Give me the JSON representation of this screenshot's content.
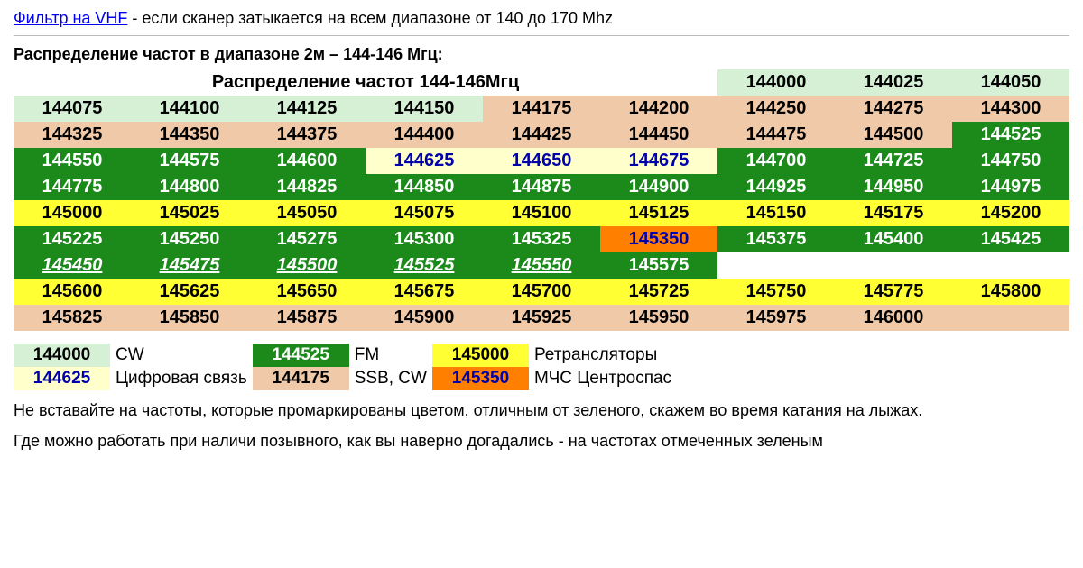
{
  "colors": {
    "mint": "#d6f0d6",
    "peach": "#f0c9a8",
    "green": "#1b8a1b",
    "yellow": "#ffff33",
    "cream": "#ffffcc",
    "orange": "#ff8000",
    "white": "#ffffff",
    "lightborder": "#e8e8e8"
  },
  "top": {
    "link_text": "Фильтр на VHF",
    "tail": " - если сканер затыкается на всем диапазоне от 140 до 170 Mhz"
  },
  "subtitle": "Распределение частот в диапазоне 2м – 144-146 Мгц:",
  "table_title": "Распределение частот 144-146Мгц",
  "grid": [
    [
      {
        "title": true,
        "span": 6
      },
      {
        "v": "144000",
        "bg": "mint",
        "fg": "#000"
      },
      {
        "v": "144025",
        "bg": "mint",
        "fg": "#000"
      },
      {
        "v": "144050",
        "bg": "mint",
        "fg": "#000"
      }
    ],
    [
      {
        "v": "144075",
        "bg": "mint",
        "fg": "#000"
      },
      {
        "v": "144100",
        "bg": "mint",
        "fg": "#000"
      },
      {
        "v": "144125",
        "bg": "mint",
        "fg": "#000"
      },
      {
        "v": "144150",
        "bg": "mint",
        "fg": "#000"
      },
      {
        "v": "144175",
        "bg": "peach",
        "fg": "#000"
      },
      {
        "v": "144200",
        "bg": "peach",
        "fg": "#000"
      },
      {
        "v": "144250",
        "bg": "peach",
        "fg": "#000"
      },
      {
        "v": "144275",
        "bg": "peach",
        "fg": "#000"
      },
      {
        "v": "144300",
        "bg": "peach",
        "fg": "#000"
      }
    ],
    [
      {
        "v": "144325",
        "bg": "peach",
        "fg": "#000"
      },
      {
        "v": "144350",
        "bg": "peach",
        "fg": "#000"
      },
      {
        "v": "144375",
        "bg": "peach",
        "fg": "#000"
      },
      {
        "v": "144400",
        "bg": "peach",
        "fg": "#000"
      },
      {
        "v": "144425",
        "bg": "peach",
        "fg": "#000"
      },
      {
        "v": "144450",
        "bg": "peach",
        "fg": "#000"
      },
      {
        "v": "144475",
        "bg": "peach",
        "fg": "#000"
      },
      {
        "v": "144500",
        "bg": "peach",
        "fg": "#000"
      },
      {
        "v": "144525",
        "bg": "green",
        "fg": "#fff"
      }
    ],
    [
      {
        "v": "144550",
        "bg": "green",
        "fg": "#fff"
      },
      {
        "v": "144575",
        "bg": "green",
        "fg": "#fff"
      },
      {
        "v": "144600",
        "bg": "green",
        "fg": "#fff"
      },
      {
        "v": "144625",
        "bg": "cream",
        "fg": "#0000aa"
      },
      {
        "v": "144650",
        "bg": "cream",
        "fg": "#0000aa"
      },
      {
        "v": "144675",
        "bg": "cream",
        "fg": "#0000aa"
      },
      {
        "v": "144700",
        "bg": "green",
        "fg": "#fff"
      },
      {
        "v": "144725",
        "bg": "green",
        "fg": "#fff"
      },
      {
        "v": "144750",
        "bg": "green",
        "fg": "#fff"
      }
    ],
    [
      {
        "v": "144775",
        "bg": "green",
        "fg": "#fff"
      },
      {
        "v": "144800",
        "bg": "green",
        "fg": "#fff"
      },
      {
        "v": "144825",
        "bg": "green",
        "fg": "#fff"
      },
      {
        "v": "144850",
        "bg": "green",
        "fg": "#fff"
      },
      {
        "v": "144875",
        "bg": "green",
        "fg": "#fff"
      },
      {
        "v": "144900",
        "bg": "green",
        "fg": "#fff"
      },
      {
        "v": "144925",
        "bg": "green",
        "fg": "#fff"
      },
      {
        "v": "144950",
        "bg": "green",
        "fg": "#fff"
      },
      {
        "v": "144975",
        "bg": "green",
        "fg": "#fff"
      }
    ],
    [
      {
        "v": "145000",
        "bg": "yellow",
        "fg": "#000"
      },
      {
        "v": "145025",
        "bg": "yellow",
        "fg": "#000"
      },
      {
        "v": "145050",
        "bg": "yellow",
        "fg": "#000"
      },
      {
        "v": "145075",
        "bg": "yellow",
        "fg": "#000"
      },
      {
        "v": "145100",
        "bg": "yellow",
        "fg": "#000"
      },
      {
        "v": "145125",
        "bg": "yellow",
        "fg": "#000"
      },
      {
        "v": "145150",
        "bg": "yellow",
        "fg": "#000"
      },
      {
        "v": "145175",
        "bg": "yellow",
        "fg": "#000"
      },
      {
        "v": "145200",
        "bg": "yellow",
        "fg": "#000"
      }
    ],
    [
      {
        "v": "145225",
        "bg": "green",
        "fg": "#fff"
      },
      {
        "v": "145250",
        "bg": "green",
        "fg": "#fff"
      },
      {
        "v": "145275",
        "bg": "green",
        "fg": "#fff"
      },
      {
        "v": "145300",
        "bg": "green",
        "fg": "#fff"
      },
      {
        "v": "145325",
        "bg": "green",
        "fg": "#fff"
      },
      {
        "v": "145350",
        "bg": "orange",
        "fg": "#0000aa"
      },
      {
        "v": "145375",
        "bg": "green",
        "fg": "#fff"
      },
      {
        "v": "145400",
        "bg": "green",
        "fg": "#fff"
      },
      {
        "v": "145425",
        "bg": "green",
        "fg": "#fff"
      }
    ],
    [
      {
        "v": "145450",
        "bg": "green",
        "fg": "#fff",
        "ul": true
      },
      {
        "v": "145475",
        "bg": "green",
        "fg": "#fff",
        "ul": true
      },
      {
        "v": "145500",
        "bg": "green",
        "fg": "#fff",
        "ul": true
      },
      {
        "v": "145525",
        "bg": "green",
        "fg": "#fff",
        "ul": true
      },
      {
        "v": "145550",
        "bg": "green",
        "fg": "#fff",
        "ul": true
      },
      {
        "v": "145575",
        "bg": "green",
        "fg": "#fff"
      },
      {
        "v": "",
        "bg": "white"
      },
      {
        "v": "",
        "bg": "white"
      },
      {
        "v": "",
        "bg": "white"
      }
    ],
    [
      {
        "v": "145600",
        "bg": "yellow",
        "fg": "#000"
      },
      {
        "v": "145625",
        "bg": "yellow",
        "fg": "#000"
      },
      {
        "v": "145650",
        "bg": "yellow",
        "fg": "#000"
      },
      {
        "v": "145675",
        "bg": "yellow",
        "fg": "#000"
      },
      {
        "v": "145700",
        "bg": "yellow",
        "fg": "#000"
      },
      {
        "v": "145725",
        "bg": "yellow",
        "fg": "#000"
      },
      {
        "v": "145750",
        "bg": "yellow",
        "fg": "#000"
      },
      {
        "v": "145775",
        "bg": "yellow",
        "fg": "#000"
      },
      {
        "v": "145800",
        "bg": "yellow",
        "fg": "#000"
      }
    ],
    [
      {
        "v": "145825",
        "bg": "peach",
        "fg": "#000"
      },
      {
        "v": "145850",
        "bg": "peach",
        "fg": "#000"
      },
      {
        "v": "145875",
        "bg": "peach",
        "fg": "#000"
      },
      {
        "v": "145900",
        "bg": "peach",
        "fg": "#000"
      },
      {
        "v": "145925",
        "bg": "peach",
        "fg": "#000"
      },
      {
        "v": "145950",
        "bg": "peach",
        "fg": "#000"
      },
      {
        "v": "145975",
        "bg": "peach",
        "fg": "#000"
      },
      {
        "v": "146000",
        "bg": "peach",
        "fg": "#000"
      },
      {
        "v": "",
        "bg": "peach"
      }
    ]
  ],
  "legend": [
    {
      "sw": "144000",
      "bg": "mint",
      "fg": "#000",
      "label": "CW"
    },
    {
      "sw": "144625",
      "bg": "cream",
      "fg": "#0000aa",
      "label": "Цифровая связь"
    },
    {
      "sw": "144525",
      "bg": "green",
      "fg": "#fff",
      "label": "FM"
    },
    {
      "sw": "144175",
      "bg": "peach",
      "fg": "#000",
      "label": "SSB, CW"
    },
    {
      "sw": "145000",
      "bg": "yellow",
      "fg": "#000",
      "label": "Ретрансляторы"
    },
    {
      "sw": "145350",
      "bg": "orange",
      "fg": "#0000aa",
      "label": "МЧС Центроспас"
    }
  ],
  "notes": {
    "p1": "Не вставайте на частоты, которые промаркированы цветом, отличным от зеленого, скажем во время катания на лыжах.",
    "p2": "Где можно работать при наличи позывного, как вы наверно догадались - на частотах отмеченных зеленым"
  }
}
